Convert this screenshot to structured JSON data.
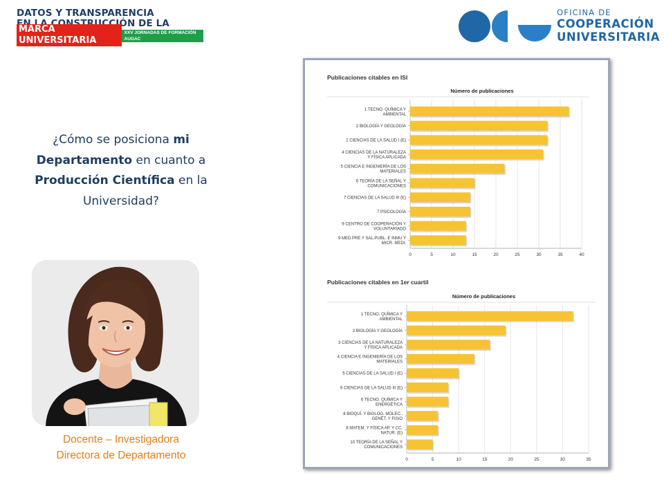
{
  "header": {
    "title_line1": "DATOS Y TRANSPARENCIA",
    "title_line2": "EN LA CONSTRUCCIÓN DE LA",
    "title_line3": "MARCA UNIVERSITARIA",
    "event": "XXV JORNADAS DE FORMACIÓN AUGAC"
  },
  "logo": {
    "line1": "OFICINA DE",
    "line2": "COOPERACIÓN",
    "line3": "UNIVERSITARIA",
    "color": "#1f67a6"
  },
  "question": {
    "p1": "¿Cómo se posiciona ",
    "b1": "mi Departamento",
    "p2": " en cuanto a ",
    "b2": "Producción Científica",
    "p3": " en la Universidad?"
  },
  "caption": {
    "line1": "Docente – Investigadora",
    "line2": "Directora de Departamento"
  },
  "chart_data": [
    {
      "type": "bar",
      "orientation": "horizontal",
      "title": "Publicaciones citables en ISI",
      "subtitle": "Número de publicaciones",
      "categories": [
        "1 TECNO. QUÍMICA Y AMBIENTAL",
        "2 BIOLOGÍA Y GEOLOGÍA",
        "2 CIENCIAS DE LA SALUD I (E)",
        "4 CIENCIAS DE LA NATURALEZA Y FÍSICA APLICADA",
        "5 CIENCIA E INGENIERÍA DE LOS MATERIALES",
        "6 TEORÍA DE LA SEÑAL Y COMUNICACIONES",
        "7 CIENCIAS DE LA SALUD III (E)",
        "7 PSICOLOGÍA",
        "9 CENTRO DE COOPERACIÓN Y VOLUNTARIADO",
        "9 MED.PRE Y SAL.PUBL. E INMU Y MICR. MEDI."
      ],
      "labels": [
        [
          "1 TECNO. QUÍMICA Y",
          "AMBIENTAL"
        ],
        [
          "2 BIOLOGÍA Y GEOLOGÍA"
        ],
        [
          "2 CIENCIAS DE LA SALUD I (E)"
        ],
        [
          "4 CIENCIAS DE LA NATURALEZA",
          "Y FÍSICA APLICADA"
        ],
        [
          "5 CIENCIA E INGENIERÍA DE LOS",
          "MATERIALES"
        ],
        [
          "6 TEORÍA DE LA SEÑAL Y",
          "COMUNICACIONES"
        ],
        [
          "7 CIENCIAS DE LA SALUD III (E)"
        ],
        [
          "7 PSICOLOGÍA"
        ],
        [
          "9 CENTRO DE COOPERACIÓN Y",
          "VOLUNTARIADO"
        ],
        [
          "9 MED.PRE Y SAL.PUBL. E INMU Y",
          "MICR. MEDI."
        ]
      ],
      "values": [
        37,
        32,
        32,
        31,
        22,
        15,
        14,
        14,
        13,
        13
      ],
      "xlim": [
        0,
        40
      ],
      "ticks": [
        0,
        5,
        10,
        15,
        20,
        25,
        30,
        35,
        40
      ],
      "grid": true,
      "bar_color": "#f6c333"
    },
    {
      "type": "bar",
      "orientation": "horizontal",
      "title": "Publicaciones citables en 1er cuartil",
      "subtitle": "Número de publicaciones",
      "categories": [
        "1 TECNO. QUÍMICA Y AMBIENTAL",
        "2 BIOLOGÍA Y GEOLOGÍA",
        "3 CIENCIAS DE LA NATURALEZA Y FÍSICA APLICADA",
        "4 CIENCIA E INGENIERÍA DE LOS MATERIALES",
        "5 CIENCIAS DE LA SALUD I (E)",
        "6 CIENCIAS DE LA SALUD III (E)",
        "6 TECNO. QUÍMICA Y ENERGÉTICA",
        "8 BIOQUÍ. Y BIOLOG. MOLEC., GENÉT. Y FISIO",
        "8 MATEM. Y FÍSICA AP. Y CC. NATUR. (E)",
        "10 TEORÍA DE LA SEÑAL Y COMUNICACIONES"
      ],
      "labels": [
        [
          "1 TECNO. QUÍMICA Y",
          "AMBIENTAL"
        ],
        [
          "2 BIOLOGÍA Y GEOLOGÍA"
        ],
        [
          "3 CIENCIAS DE LA NATURALEZA",
          "Y FÍSICA APLICADA"
        ],
        [
          "4 CIENCIA E INGENIERÍA DE LOS",
          "MATERIALES"
        ],
        [
          "5 CIENCIAS DE LA SALUD I (E)"
        ],
        [
          "6 CIENCIAS DE LA SALUD III (E)"
        ],
        [
          "6 TECNO. QUÍMICA Y",
          "ENERGÉTICA"
        ],
        [
          "8 BIOQUÍ. Y BIOLOG. MOLEC.,",
          "GENÉT. Y FISIO"
        ],
        [
          "8 MATEM. Y FÍSICA AP. Y CC.",
          "NATUR. (E)"
        ],
        [
          "10 TEORÍA DE LA SEÑAL Y",
          "COMUNICACIONES"
        ]
      ],
      "values": [
        32,
        19,
        16,
        13,
        10,
        8,
        8,
        6,
        6,
        5
      ],
      "xlim": [
        0,
        35
      ],
      "ticks": [
        0,
        5,
        10,
        15,
        20,
        25,
        30,
        35
      ],
      "grid": true,
      "bar_color": "#f6c333"
    }
  ]
}
